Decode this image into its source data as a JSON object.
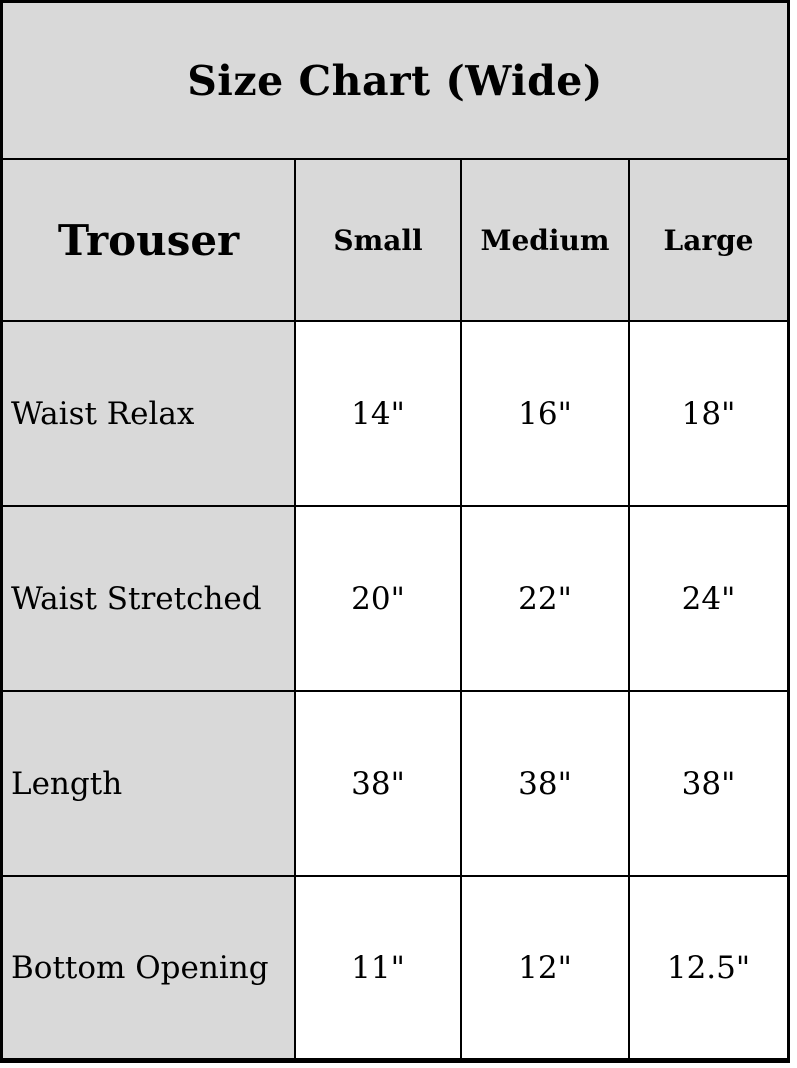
{
  "chart_data": {
    "type": "table",
    "title": "Size Chart (Wide)",
    "corner_label": "Trouser",
    "columns": [
      "Small",
      "Medium",
      "Large"
    ],
    "rows": [
      {
        "label": "Waist Relax",
        "values": [
          "14\"",
          "16\"",
          "18\""
        ]
      },
      {
        "label": "Waist Stretched",
        "values": [
          "20\"",
          "22\"",
          "24\""
        ]
      },
      {
        "label": "Length",
        "values": [
          "38\"",
          "38\"",
          "38\""
        ]
      },
      {
        "label": "Bottom Opening",
        "values": [
          "11\"",
          "12\"",
          "12.5\""
        ]
      }
    ],
    "layout": {
      "header_background": "#d9d9d9",
      "label_column_background": "#d9d9d9",
      "value_cell_background": "#ffffff",
      "border_color": "#000000",
      "grid": "on"
    }
  }
}
